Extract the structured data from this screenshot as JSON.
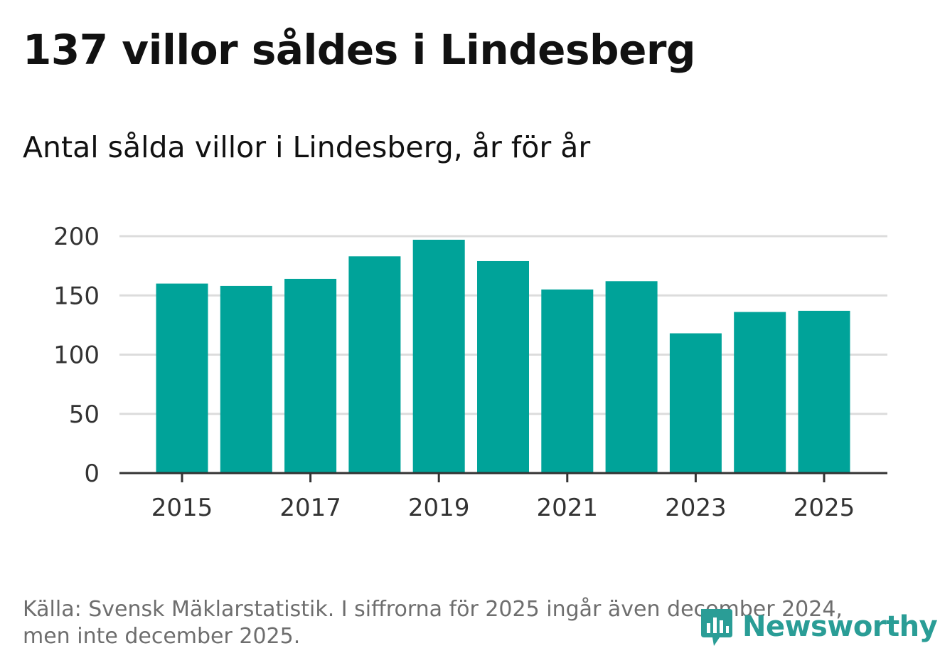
{
  "header": {
    "title": "137 villor såldes i Lindesberg",
    "subtitle": "Antal sålda villor i Lindesberg, år för år"
  },
  "footer": {
    "source_line1": "Källa: Svensk Mäklarstatistik. I siffrorna för 2025 ingår även december 2024,",
    "source_line2": "men inte december 2025."
  },
  "brand": {
    "name": "Newsworthy",
    "color": "#2a9d96"
  },
  "colors": {
    "bar": "#00a399",
    "grid": "#dcdcdc",
    "axis": "#333333"
  },
  "chart_data": {
    "type": "bar",
    "title": "Antal sålda villor i Lindesberg, år för år",
    "xlabel": "",
    "ylabel": "",
    "categories": [
      "2015",
      "2016",
      "2017",
      "2018",
      "2019",
      "2020",
      "2021",
      "2022",
      "2023",
      "2024",
      "2025"
    ],
    "values": [
      160,
      158,
      164,
      183,
      197,
      179,
      155,
      162,
      118,
      136,
      137
    ],
    "ylim": [
      0,
      200
    ],
    "yticks": [
      0,
      50,
      100,
      150,
      200
    ],
    "xtick_labels": [
      "2015",
      "2017",
      "2019",
      "2021",
      "2023",
      "2025"
    ],
    "grid": true,
    "legend": "none"
  }
}
